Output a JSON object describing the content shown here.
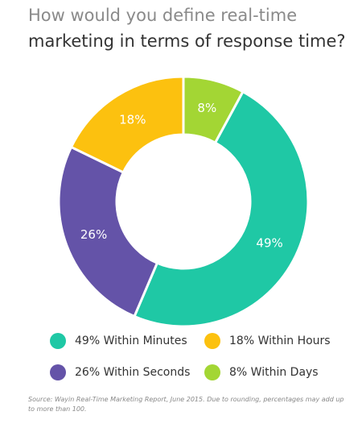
{
  "chart_data": {
    "type": "pie",
    "title": [
      "How would you define real-time",
      "marketing in terms of response time?"
    ],
    "categories": [
      "8% Within Days",
      "49% Within Minutes",
      "26% Within Seconds",
      "18% Within Hours"
    ],
    "values": [
      8,
      49,
      26,
      18
    ],
    "value_labels": [
      "8%",
      "49%",
      "26%",
      "18%"
    ],
    "colors": [
      "#a3d634",
      "#1fc8a5",
      "#6453a8",
      "#fcc10f"
    ],
    "source": "Source: Wayin Real-Time Marketing Report, June 2015. Due to rounding, percentages may add up to more than 100."
  }
}
